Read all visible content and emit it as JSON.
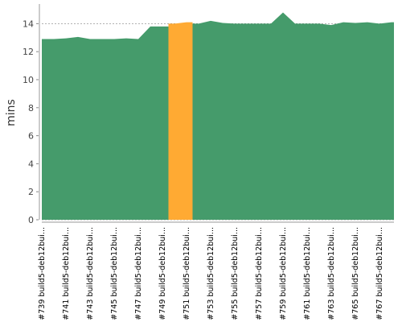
{
  "chart_data": {
    "type": "area",
    "y_label": "mins",
    "categories": [
      "#739 build5-deb12bui...",
      null,
      "#741 build5-deb12bui...",
      null,
      "#743 build5-deb12bui...",
      null,
      "#745 build5-deb12bui...",
      null,
      "#747 build5-deb12bui...",
      null,
      "#749 build5-deb12bui...",
      null,
      "#751 build5-deb12bui...",
      null,
      "#753 build5-deb12bui...",
      null,
      "#755 build5-deb12bui...",
      null,
      "#757 build5-deb12bui...",
      null,
      "#759 build5-deb12bui...",
      null,
      "#761 build5-deb12bui...",
      null,
      "#763 build5-deb12bui...",
      null,
      "#765 build5-deb12bui...",
      null,
      "#767 build5-deb12bui...",
      null
    ],
    "series": [
      {
        "color": "#459b6b",
        "values": [
          12.9,
          12.9,
          12.95,
          13.05,
          12.9,
          12.9,
          12.9,
          12.95,
          12.9,
          13.8,
          13.8,
          null,
          null,
          14.0,
          14.2,
          14.05,
          14.0,
          14.0,
          14.0,
          14.0,
          14.8,
          14.0,
          14.0,
          14.0,
          13.9,
          14.1,
          14.05,
          14.1,
          14.0,
          14.1
        ]
      },
      {
        "color": "#ffaa33",
        "values": [
          null,
          null,
          null,
          null,
          null,
          null,
          null,
          null,
          null,
          null,
          null,
          14.0,
          14.1,
          null,
          null,
          null,
          null,
          null,
          null,
          null,
          null,
          null,
          null,
          null,
          null,
          null,
          null,
          null,
          null,
          null
        ]
      }
    ],
    "ylim": [
      0,
      15.4
    ],
    "yticks": [
      0,
      2,
      4,
      6,
      8,
      10,
      12,
      14
    ],
    "grid": true
  }
}
